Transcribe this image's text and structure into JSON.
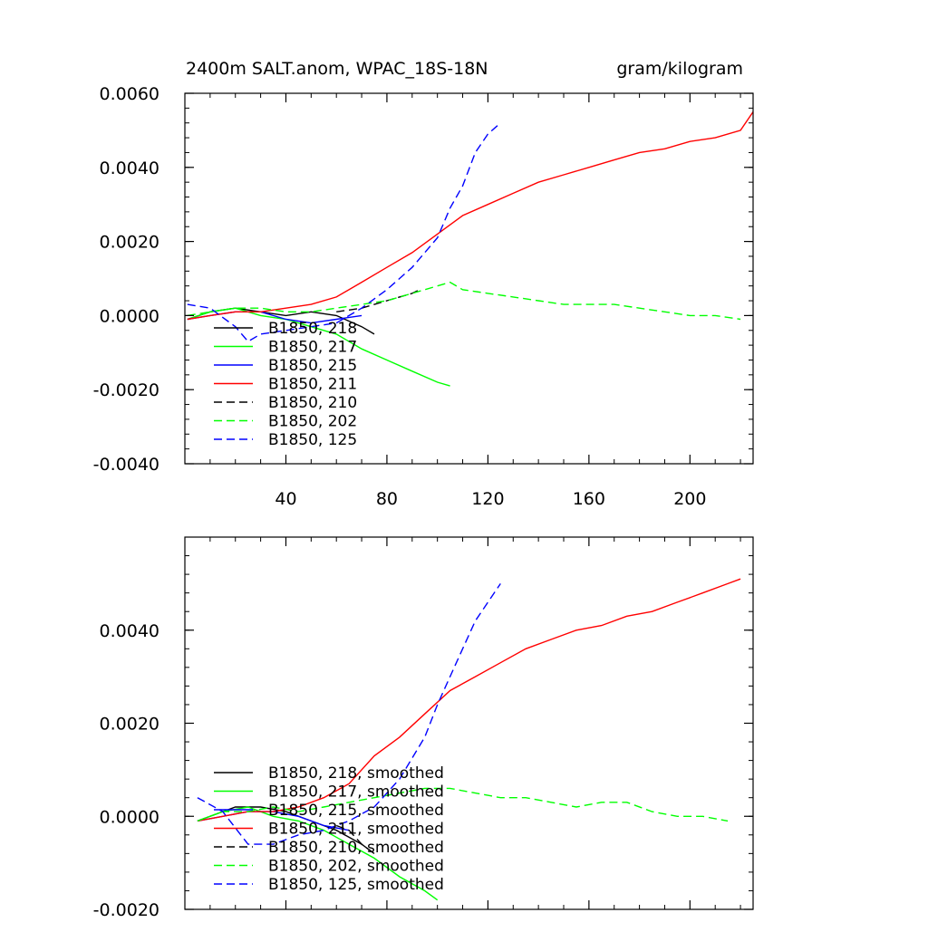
{
  "chart_data": [
    {
      "type": "line",
      "title": "2400m SALT.anom, WPAC_18S-18N",
      "units": "gram/kilogram",
      "xlim": [
        0,
        225
      ],
      "ylim": [
        -0.004,
        0.006
      ],
      "xticks": [
        40,
        80,
        120,
        160,
        200
      ],
      "xtick_labels": [
        "40",
        "80",
        "120",
        "160",
        "200"
      ],
      "yticks": [
        -0.004,
        -0.002,
        0,
        0.002,
        0.004,
        0.006
      ],
      "ytick_labels": [
        "-0.0040",
        "-0.0020",
        "0.0000",
        "0.0020",
        "0.0040",
        "0.0060"
      ],
      "legend": [
        "B1850, 218",
        "B1850, 217",
        "B1850, 215",
        "B1850, 211",
        "B1850, 210",
        "B1850, 202",
        "B1850, 125"
      ],
      "series": [
        {
          "name": "B1850, 218",
          "color": "#000000",
          "dash": "solid",
          "x": [
            1,
            10,
            20,
            30,
            40,
            50,
            60,
            70,
            75
          ],
          "y": [
            -0.0001,
            0.0001,
            0.0002,
            0.0001,
            0.0,
            0.0001,
            0.0,
            -0.0003,
            -0.0005
          ]
        },
        {
          "name": "B1850, 217",
          "color": "#00ff00",
          "dash": "solid",
          "x": [
            1,
            10,
            20,
            30,
            40,
            50,
            60,
            70,
            80,
            90,
            100,
            105
          ],
          "y": [
            -0.0001,
            0.0001,
            0.0002,
            0.0,
            -0.0001,
            -0.0003,
            -0.0005,
            -0.0009,
            -0.0012,
            -0.0015,
            -0.0018,
            -0.0019
          ]
        },
        {
          "name": "B1850, 215",
          "color": "#0000ff",
          "dash": "solid",
          "x": [
            1,
            10,
            20,
            30,
            40,
            50,
            60,
            70
          ],
          "y": [
            -0.0001,
            0.0,
            0.0001,
            0.0001,
            -0.0001,
            -0.0002,
            -0.0001,
            0.0
          ]
        },
        {
          "name": "B1850, 211",
          "color": "#ff0000",
          "dash": "solid",
          "x": [
            1,
            10,
            20,
            30,
            40,
            50,
            60,
            70,
            80,
            90,
            100,
            110,
            120,
            130,
            140,
            150,
            160,
            170,
            180,
            190,
            200,
            210,
            220,
            225
          ],
          "y": [
            -0.0001,
            0.0,
            0.0001,
            0.0001,
            0.0002,
            0.0003,
            0.0005,
            0.0009,
            0.0013,
            0.0017,
            0.0022,
            0.0027,
            0.003,
            0.0033,
            0.0036,
            0.0038,
            0.004,
            0.0042,
            0.0044,
            0.0045,
            0.0047,
            0.0048,
            0.005,
            0.0055
          ]
        },
        {
          "name": "B1850, 210",
          "color": "#000000",
          "dash": "dashed",
          "x": [
            60,
            70,
            80,
            85,
            90,
            93
          ],
          "y": [
            0.0001,
            0.0002,
            0.0004,
            0.0005,
            0.0006,
            0.0007
          ]
        },
        {
          "name": "B1850, 202",
          "color": "#00ff00",
          "dash": "dashed",
          "x": [
            1,
            10,
            20,
            30,
            40,
            50,
            60,
            70,
            80,
            90,
            100,
            105,
            110,
            120,
            130,
            140,
            150,
            160,
            170,
            180,
            190,
            200,
            210,
            220
          ],
          "y": [
            0.0,
            0.0001,
            0.0002,
            0.0002,
            0.0001,
            0.0001,
            0.0002,
            0.0003,
            0.0004,
            0.0006,
            0.0008,
            0.0009,
            0.0007,
            0.0006,
            0.0005,
            0.0004,
            0.0003,
            0.0003,
            0.0003,
            0.0002,
            0.0001,
            0.0,
            0.0,
            -0.0001
          ]
        },
        {
          "name": "B1850, 125",
          "color": "#0000ff",
          "dash": "dashed",
          "x": [
            1,
            10,
            20,
            25,
            30,
            40,
            50,
            60,
            70,
            80,
            90,
            100,
            105,
            110,
            115,
            120,
            125
          ],
          "y": [
            0.0003,
            0.0002,
            -0.0003,
            -0.0007,
            -0.0005,
            -0.0004,
            -0.0003,
            -0.0002,
            0.0002,
            0.0007,
            0.0013,
            0.0021,
            0.0029,
            0.0035,
            0.0044,
            0.0049,
            0.0052
          ]
        }
      ]
    },
    {
      "type": "line",
      "xlim": [
        0,
        225
      ],
      "ylim": [
        -0.002,
        0.006
      ],
      "xticks": [
        40,
        80,
        120,
        160,
        200
      ],
      "yticks": [
        -0.002,
        0,
        0.002,
        0.004
      ],
      "ytick_labels": [
        "-0.0020",
        "0.0000",
        "0.0020",
        "0.0040"
      ],
      "legend": [
        "B1850, 218, smoothed",
        "B1850, 217, smoothed",
        "B1850, 215, smoothed",
        "B1850, 211, smoothed",
        "B1850, 210, smoothed",
        "B1850, 202, smoothed",
        "B1850, 125, smoothed"
      ],
      "series": [
        {
          "name": "B1850, 218, smoothed",
          "color": "#000000",
          "dash": "solid",
          "x": [
            5,
            15,
            20,
            25,
            30,
            40,
            50,
            60,
            70,
            75
          ],
          "y": [
            -0.0001,
            0.0001,
            0.0002,
            0.0002,
            0.0002,
            0.0001,
            -0.0001,
            -0.0003,
            -0.0006,
            -0.0008
          ]
        },
        {
          "name": "B1850, 217, smoothed",
          "color": "#00ff00",
          "dash": "solid",
          "x": [
            5,
            15,
            25,
            35,
            45,
            55,
            65,
            75,
            85,
            95,
            100
          ],
          "y": [
            -0.0001,
            0.0001,
            0.0002,
            0.0,
            -0.0001,
            -0.0003,
            -0.0006,
            -0.0009,
            -0.0013,
            -0.0016,
            -0.0018
          ]
        },
        {
          "name": "B1850, 215, smoothed",
          "color": "#0000ff",
          "dash": "solid",
          "x": [
            5,
            15,
            25,
            35,
            45,
            55,
            65
          ],
          "y": [
            -0.0001,
            0.0,
            0.0001,
            0.0001,
            0.0,
            -0.0002,
            -0.0003
          ]
        },
        {
          "name": "B1850, 211, smoothed",
          "color": "#ff0000",
          "dash": "solid",
          "x": [
            5,
            15,
            25,
            35,
            45,
            55,
            65,
            75,
            85,
            95,
            105,
            115,
            125,
            135,
            145,
            155,
            165,
            175,
            185,
            195,
            205,
            215,
            220
          ],
          "y": [
            -0.0001,
            0.0,
            0.0001,
            0.0001,
            0.0002,
            0.0004,
            0.0007,
            0.0013,
            0.0017,
            0.0022,
            0.0027,
            0.003,
            0.0033,
            0.0036,
            0.0038,
            0.004,
            0.0041,
            0.0043,
            0.0044,
            0.0046,
            0.0048,
            0.005,
            0.0051
          ]
        },
        {
          "name": "B1850, 210, smoothed",
          "color": "#000000",
          "dash": "dashed",
          "x": [
            60,
            65,
            70,
            75
          ],
          "y": [
            -0.0002,
            -0.0003,
            -0.0006,
            -0.0008
          ]
        },
        {
          "name": "B1850, 202, smoothed",
          "color": "#00ff00",
          "dash": "dashed",
          "x": [
            5,
            15,
            25,
            35,
            45,
            55,
            65,
            75,
            85,
            95,
            105,
            115,
            125,
            135,
            145,
            155,
            165,
            175,
            185,
            195,
            205,
            215
          ],
          "y": [
            -0.0001,
            0.0001,
            0.0001,
            0.0002,
            0.0001,
            0.0002,
            0.0003,
            0.0004,
            0.0005,
            0.0006,
            0.0006,
            0.0005,
            0.0004,
            0.0004,
            0.0003,
            0.0002,
            0.0003,
            0.0003,
            0.0001,
            0.0,
            0.0,
            -0.0001
          ]
        },
        {
          "name": "B1850, 125, smoothed",
          "color": "#0000ff",
          "dash": "dashed",
          "x": [
            5,
            15,
            25,
            35,
            45,
            55,
            65,
            75,
            85,
            95,
            100,
            105,
            110,
            115,
            120,
            125
          ],
          "y": [
            0.0004,
            0.0001,
            -0.0006,
            -0.0006,
            -0.0004,
            -0.0003,
            -0.0001,
            0.0002,
            0.0008,
            0.0017,
            0.0024,
            0.003,
            0.0036,
            0.0042,
            0.0046,
            0.005
          ]
        }
      ]
    }
  ]
}
